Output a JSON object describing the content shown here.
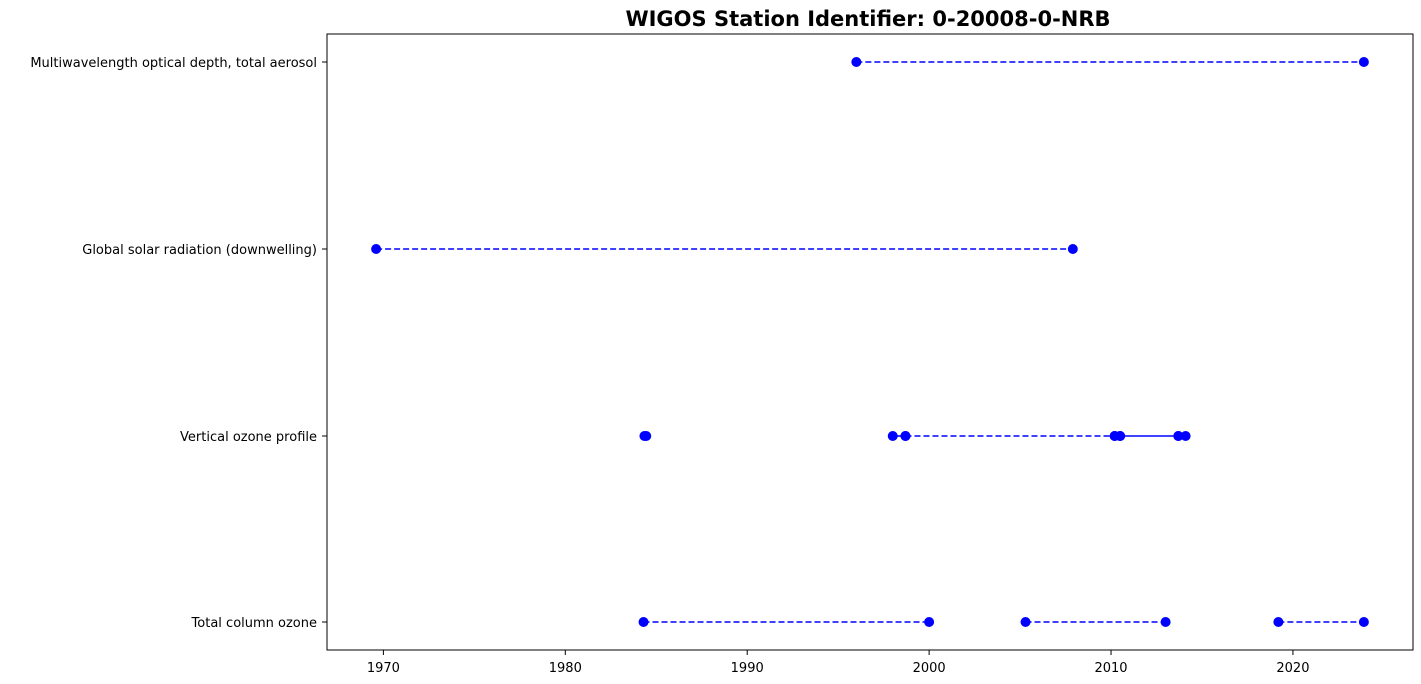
{
  "chart_data": {
    "type": "line",
    "title": "WIGOS Station Identifier: 0-20008-0-NRB",
    "xlabel": "",
    "ylabel": "",
    "xlim": [
      1966.9,
      2026.6
    ],
    "x_ticks": [
      1970,
      1980,
      1990,
      2000,
      2010,
      2020
    ],
    "categories": [
      "Total column ozone",
      "Vertical ozone profile",
      "Global solar radiation (downwelling)",
      "Multiwavelength optical depth, total aerosol"
    ],
    "grid": false,
    "marker_color": "#0000ff",
    "series": [
      {
        "category": "Total column ozone",
        "segments": [
          {
            "start": 1984.3,
            "end": 2000.0,
            "style": "dashed"
          },
          {
            "start": 2005.3,
            "end": 2013.0,
            "style": "dashed"
          },
          {
            "start": 2019.2,
            "end": 2023.9,
            "style": "dashed"
          }
        ]
      },
      {
        "category": "Vertical ozone profile",
        "segments": [
          {
            "start": 1984.35,
            "end": 1984.45,
            "style": "solid"
          },
          {
            "start": 1998.0,
            "end": 1998.7,
            "style": "solid"
          },
          {
            "start": 1998.7,
            "end": 2010.2,
            "style": "dashed"
          },
          {
            "start": 2010.2,
            "end": 2010.5,
            "style": "solid"
          },
          {
            "start": 2010.5,
            "end": 2013.7,
            "style": "solid"
          },
          {
            "start": 2013.7,
            "end": 2014.1,
            "style": "solid"
          }
        ]
      },
      {
        "category": "Global solar radiation (downwelling)",
        "segments": [
          {
            "start": 1969.6,
            "end": 2007.9,
            "style": "dashed"
          }
        ]
      },
      {
        "category": "Multiwavelength optical depth, total aerosol",
        "segments": [
          {
            "start": 1996.0,
            "end": 2023.9,
            "style": "dashed"
          }
        ]
      }
    ]
  }
}
